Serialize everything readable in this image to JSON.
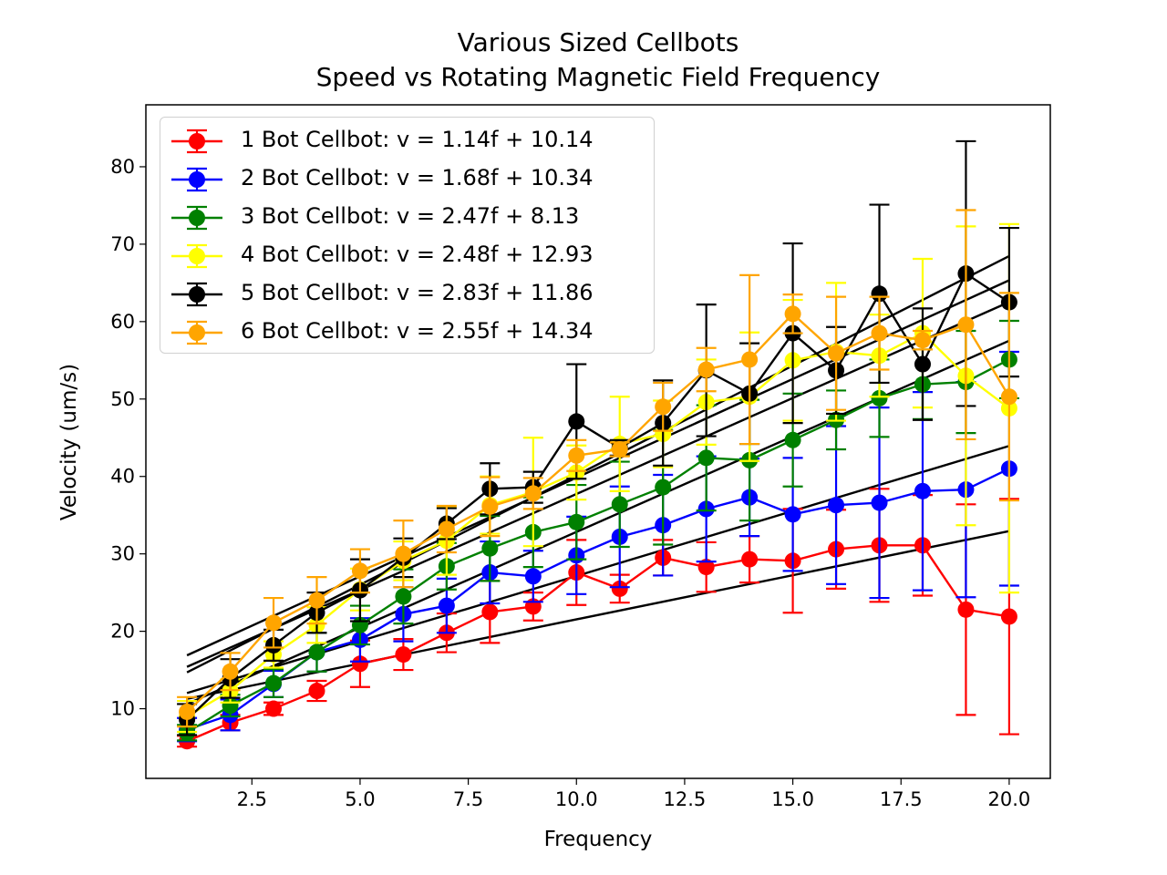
{
  "chart_data": {
    "type": "line",
    "title": "Various Sized Cellbots",
    "subtitle": "Speed vs Rotating Magnetic Field Frequency",
    "xlabel": "Frequency",
    "ylabel": "Velocity (um/s)",
    "xlim": [
      0.05,
      20.95
    ],
    "ylim": [
      1.0,
      88.0
    ],
    "xticks": [
      2.5,
      5.0,
      7.5,
      10.0,
      12.5,
      15.0,
      17.5,
      20.0
    ],
    "xtick_labels": [
      "2.5",
      "5.0",
      "7.5",
      "10.0",
      "12.5",
      "15.0",
      "17.5",
      "20.0"
    ],
    "yticks": [
      10,
      20,
      30,
      40,
      50,
      60,
      70,
      80
    ],
    "ytick_labels": [
      "10",
      "20",
      "30",
      "40",
      "50",
      "60",
      "70",
      "80"
    ],
    "legend_position": "top-left",
    "grid": false,
    "fit_color": "#000000",
    "x": [
      1,
      2,
      3,
      4,
      5,
      6,
      7,
      8,
      9,
      10,
      11,
      12,
      13,
      14,
      15,
      16,
      17,
      18,
      19,
      20
    ],
    "series": [
      {
        "name": "1 Bot Cellbot: v = 1.14f + 10.14",
        "color": "#ff0000",
        "fit": {
          "slope": 1.14,
          "intercept": 10.14
        },
        "values": [
          5.8,
          8.2,
          10.0,
          12.3,
          15.8,
          17.0,
          19.8,
          22.5,
          23.2,
          27.6,
          25.5,
          29.5,
          28.3,
          29.3,
          29.1,
          30.6,
          31.1,
          31.1,
          22.8,
          21.9
        ],
        "errors": [
          0.7,
          1.0,
          0.8,
          1.3,
          3.0,
          2.0,
          2.5,
          4.0,
          1.8,
          4.2,
          1.8,
          2.3,
          3.2,
          3.0,
          6.7,
          5.1,
          7.3,
          6.5,
          13.6,
          15.2
        ]
      },
      {
        "name": "2 Bot Cellbot: v = 1.68f + 10.34",
        "color": "#0000ff",
        "fit": {
          "slope": 1.68,
          "intercept": 10.34
        },
        "values": [
          7.3,
          9.2,
          13.2,
          17.3,
          18.9,
          22.2,
          23.3,
          27.6,
          27.1,
          29.8,
          32.2,
          33.7,
          35.8,
          37.3,
          35.1,
          36.3,
          36.6,
          38.1,
          38.3,
          41.0
        ],
        "errors": [
          1.5,
          2.0,
          1.7,
          2.5,
          2.8,
          3.5,
          3.5,
          4.0,
          3.3,
          5.0,
          6.5,
          6.5,
          6.8,
          5.0,
          7.3,
          10.2,
          12.3,
          12.8,
          13.9,
          15.1
        ]
      },
      {
        "name": "3 Bot Cellbot: v = 2.47f + 8.13",
        "color": "#008000",
        "fit": {
          "slope": 2.47,
          "intercept": 8.13
        },
        "values": [
          6.9,
          10.4,
          13.3,
          17.3,
          20.8,
          24.5,
          28.4,
          30.7,
          32.8,
          34.1,
          36.4,
          38.6,
          42.4,
          42.1,
          44.7,
          47.3,
          50.1,
          51.9,
          52.2,
          55.1
        ],
        "errors": [
          1.0,
          1.4,
          1.8,
          2.5,
          2.5,
          3.5,
          3.0,
          4.2,
          4.5,
          4.8,
          5.5,
          7.4,
          6.8,
          7.8,
          6.0,
          3.8,
          5.0,
          4.5,
          6.6,
          5.0
        ]
      },
      {
        "name": "4 Bot Cellbot: v = 2.48f + 12.93",
        "color": "#ffff00",
        "fit": {
          "slope": 2.48,
          "intercept": 12.93
        },
        "values": [
          9.0,
          12.3,
          17.0,
          20.8,
          25.4,
          29.1,
          31.7,
          36.3,
          38.0,
          40.5,
          44.2,
          45.5,
          49.6,
          50.3,
          55.0,
          56.1,
          55.6,
          58.5,
          53.0,
          48.8
        ],
        "errors": [
          2.0,
          1.5,
          1.7,
          2.3,
          2.7,
          2.5,
          4.4,
          3.7,
          7.0,
          3.5,
          6.1,
          4.3,
          5.5,
          8.3,
          7.8,
          8.9,
          5.3,
          9.6,
          19.3,
          23.8
        ]
      },
      {
        "name": "5 Bot Cellbot: v = 2.83f + 11.86",
        "color": "#000000",
        "fit": {
          "slope": 2.83,
          "intercept": 11.86
        },
        "values": [
          8.6,
          13.9,
          18.2,
          22.4,
          25.3,
          29.5,
          33.9,
          38.4,
          38.6,
          47.1,
          43.7,
          46.9,
          53.7,
          50.7,
          58.5,
          53.7,
          63.6,
          54.5,
          66.2,
          62.5
        ],
        "errors": [
          2.0,
          2.5,
          2.0,
          2.6,
          4.0,
          2.5,
          2.0,
          3.3,
          2.0,
          7.4,
          1.0,
          5.5,
          8.5,
          6.5,
          11.6,
          5.6,
          11.5,
          7.2,
          17.1,
          9.6
        ]
      },
      {
        "name": "6 Bot Cellbot: v = 2.55f + 14.34",
        "color": "#ffa500",
        "fit": {
          "slope": 2.55,
          "intercept": 14.34
        },
        "values": [
          9.6,
          14.8,
          21.1,
          24.0,
          27.8,
          30.0,
          33.2,
          36.1,
          37.8,
          42.7,
          43.5,
          49.0,
          53.8,
          55.1,
          61.0,
          55.9,
          58.5,
          57.6,
          59.6,
          50.3
        ],
        "errors": [
          1.9,
          2.4,
          3.2,
          3.0,
          2.8,
          4.3,
          3.0,
          3.8,
          2.0,
          2.0,
          0.9,
          3.1,
          2.8,
          10.9,
          2.5,
          7.3,
          4.7,
          1.2,
          14.8,
          13.4
        ]
      }
    ]
  }
}
